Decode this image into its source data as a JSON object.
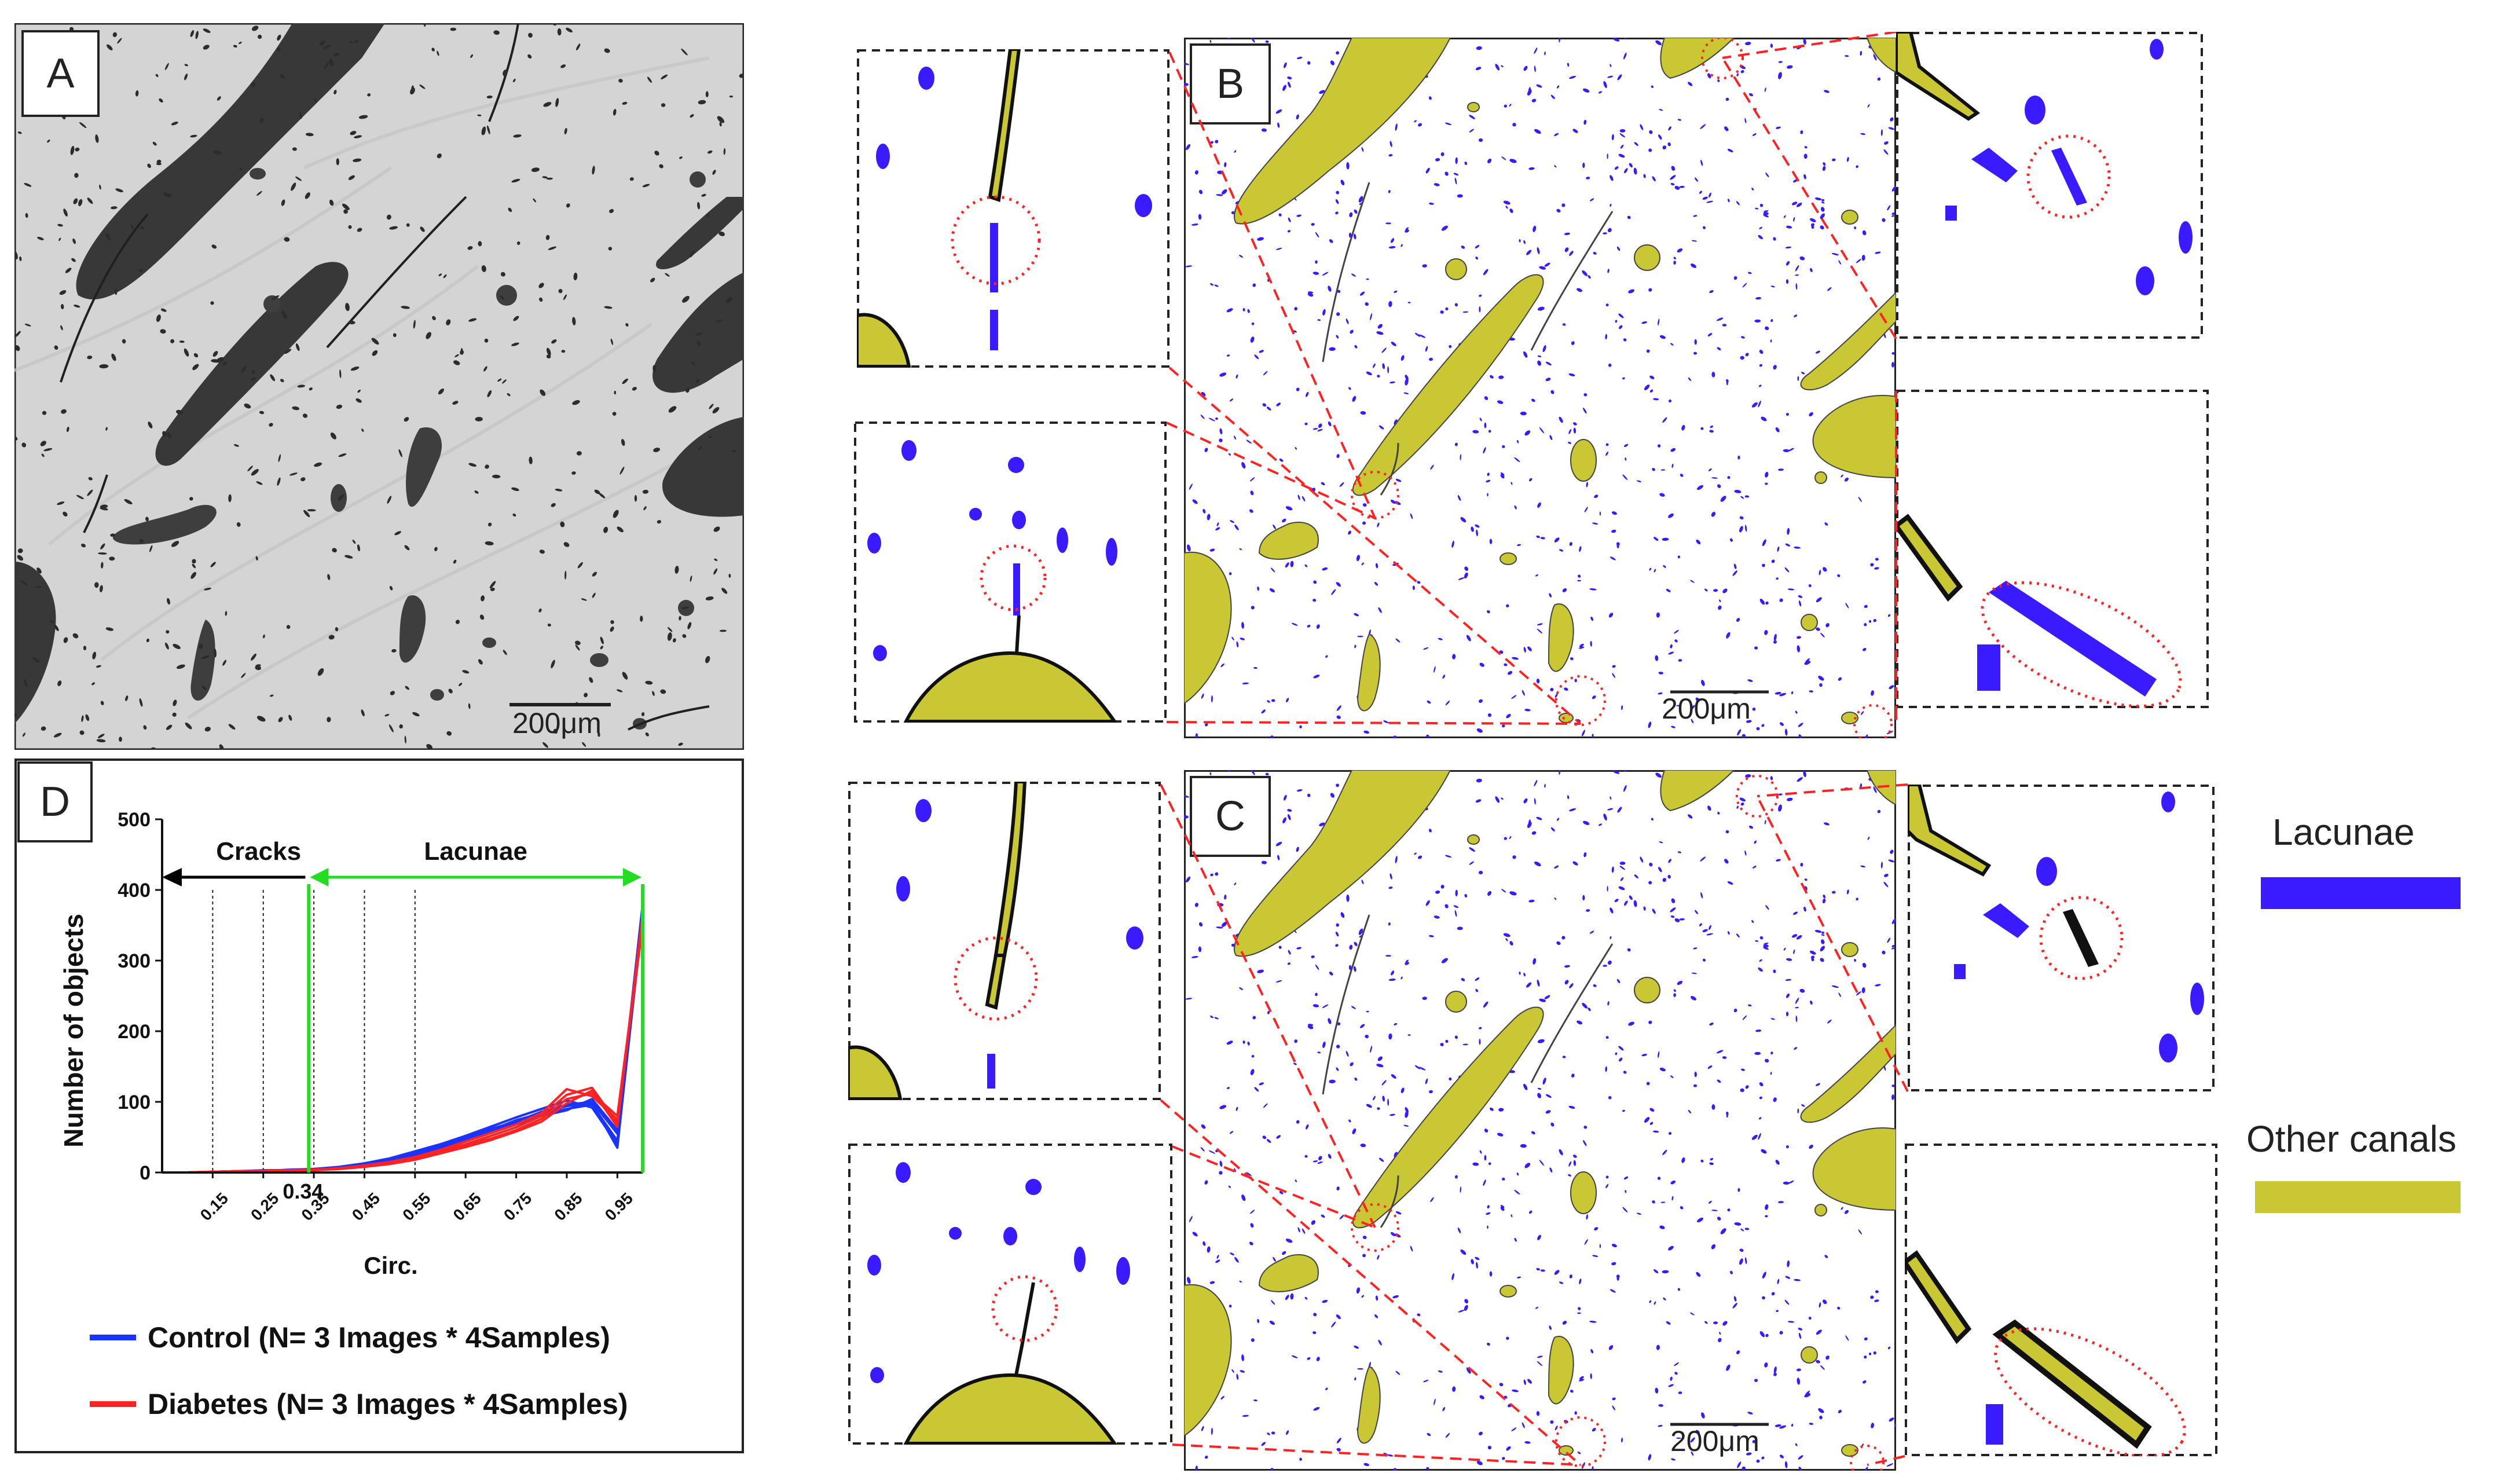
{
  "panels": {
    "a": {
      "label": "A",
      "scalebar": "200μm"
    },
    "b": {
      "label": "B",
      "scalebar": "200μm"
    },
    "c": {
      "label": "C",
      "scalebar": "200μm"
    },
    "d": {
      "label": "D"
    }
  },
  "chart_data": {
    "type": "line",
    "title": "",
    "xlabel": "Circ.",
    "ylabel": "Number of objects",
    "xlim": [
      0.05,
      1.0
    ],
    "ylim": [
      0,
      500
    ],
    "x": [
      0.05,
      0.1,
      0.15,
      0.2,
      0.25,
      0.3,
      0.35,
      0.4,
      0.45,
      0.5,
      0.55,
      0.6,
      0.65,
      0.7,
      0.75,
      0.8,
      0.85,
      0.9,
      0.95,
      1.0
    ],
    "x_tick_labels": [
      "0.15",
      "0.25",
      "0.35",
      "0.45",
      "0.55",
      "0.65",
      "0.75",
      "0.85",
      "0.95"
    ],
    "x_tick_values": [
      0.15,
      0.25,
      0.35,
      0.45,
      0.55,
      0.65,
      0.75,
      0.85,
      0.95
    ],
    "y_ticks": [
      0,
      100,
      200,
      300,
      400,
      500
    ],
    "threshold_label": "0.34",
    "threshold_value": 0.34,
    "dotted_guides": [
      0.15,
      0.25,
      0.35,
      0.45,
      0.55
    ],
    "regions": [
      {
        "label": "Cracks",
        "from": 0.34,
        "to": 0.05,
        "color": "#000000"
      },
      {
        "label": "Lacunae",
        "from": 0.34,
        "to": 1.0,
        "color": "#22dd22"
      }
    ],
    "series": [
      {
        "name": "Control (N= 3 Images * 4Samples)",
        "color": "#1a33ff",
        "group": "control",
        "values": [
          0,
          0,
          1,
          2,
          2,
          3,
          4,
          6,
          10,
          16,
          24,
          34,
          46,
          58,
          70,
          82,
          90,
          96,
          45,
          370
        ]
      },
      {
        "name": "",
        "color": "#1a33ff",
        "group": "control",
        "values": [
          0,
          0,
          1,
          1,
          3,
          3,
          5,
          7,
          12,
          18,
          28,
          38,
          50,
          62,
          72,
          86,
          96,
          100,
          55,
          380
        ]
      },
      {
        "name": "",
        "color": "#1a33ff",
        "group": "control",
        "values": [
          0,
          0,
          0,
          2,
          2,
          4,
          5,
          8,
          13,
          20,
          30,
          40,
          52,
          65,
          78,
          90,
          102,
          92,
          40,
          360
        ]
      },
      {
        "name": "",
        "color": "#1a33ff",
        "group": "control",
        "values": [
          0,
          0,
          1,
          1,
          2,
          3,
          4,
          6,
          9,
          15,
          22,
          32,
          44,
          56,
          68,
          80,
          88,
          104,
          60,
          375
        ]
      },
      {
        "name": "",
        "color": "#1a33ff",
        "group": "control",
        "values": [
          0,
          0,
          1,
          2,
          3,
          3,
          5,
          7,
          11,
          17,
          26,
          36,
          48,
          60,
          74,
          84,
          94,
          98,
          35,
          365
        ]
      },
      {
        "name": "Diabetes (N= 3 Images * 4Samples)",
        "color": "#ff2222",
        "group": "diabetes",
        "values": [
          0,
          0,
          1,
          2,
          2,
          3,
          4,
          6,
          9,
          14,
          20,
          30,
          40,
          52,
          64,
          80,
          110,
          120,
          70,
          360
        ]
      },
      {
        "name": "",
        "color": "#ff2222",
        "group": "diabetes",
        "values": [
          0,
          0,
          0,
          1,
          2,
          3,
          4,
          5,
          8,
          13,
          19,
          28,
          38,
          48,
          60,
          76,
          104,
          112,
          80,
          355
        ]
      },
      {
        "name": "",
        "color": "#ff2222",
        "group": "diabetes",
        "values": [
          0,
          0,
          1,
          1,
          2,
          2,
          3,
          5,
          8,
          12,
          18,
          27,
          36,
          46,
          58,
          72,
          98,
          116,
          65,
          365
        ]
      },
      {
        "name": "",
        "color": "#ff2222",
        "group": "diabetes",
        "values": [
          0,
          0,
          1,
          2,
          2,
          3,
          4,
          6,
          10,
          15,
          22,
          32,
          44,
          56,
          68,
          84,
          118,
          108,
          75,
          350
        ]
      }
    ],
    "legend": [
      {
        "label": "Control (N= 3 Images * 4Samples)",
        "color": "#1a33ff"
      },
      {
        "label": "Diabetes (N= 3 Images * 4Samples)",
        "color": "#ff2222"
      }
    ]
  },
  "side_legend": {
    "lacunae": {
      "label": "Lacunae",
      "color": "#3a1aff"
    },
    "canals": {
      "label": "Other canals",
      "color": "#c9c733"
    }
  },
  "colors": {
    "canal": "#c9c733",
    "lacuna": "#3a1aff",
    "crack": "#111111",
    "zoom_line": "#ff2222",
    "circle": "#ff2222"
  }
}
